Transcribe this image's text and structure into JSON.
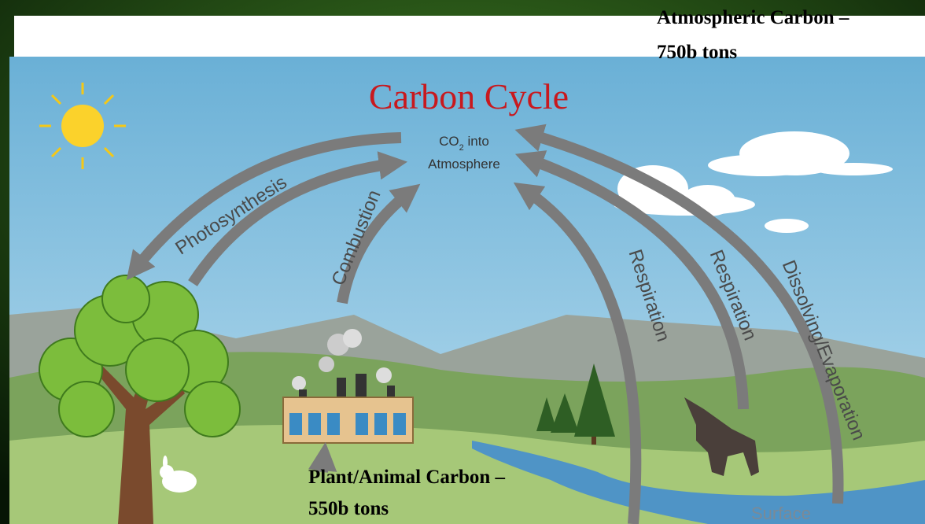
{
  "heading": {
    "atmospheric_line1": "Atmospheric Carbon –",
    "atmospheric_line2": "750b tons"
  },
  "diagram": {
    "title": "Carbon Cycle",
    "center": {
      "co": "CO",
      "subscript": "2",
      "into": " into",
      "line2": "Atmosphere"
    },
    "arrows": {
      "photosynthesis": "Photosynthesis",
      "combustion": "Combustion",
      "respiration_1": "Respiration",
      "respiration_2": "Respiration",
      "dissolving": "Dissolving/Evaporation"
    },
    "surface": "Surface"
  },
  "footer": {
    "plant_line1": "Plant/Animal Carbon –",
    "plant_line2": "550b tons"
  }
}
